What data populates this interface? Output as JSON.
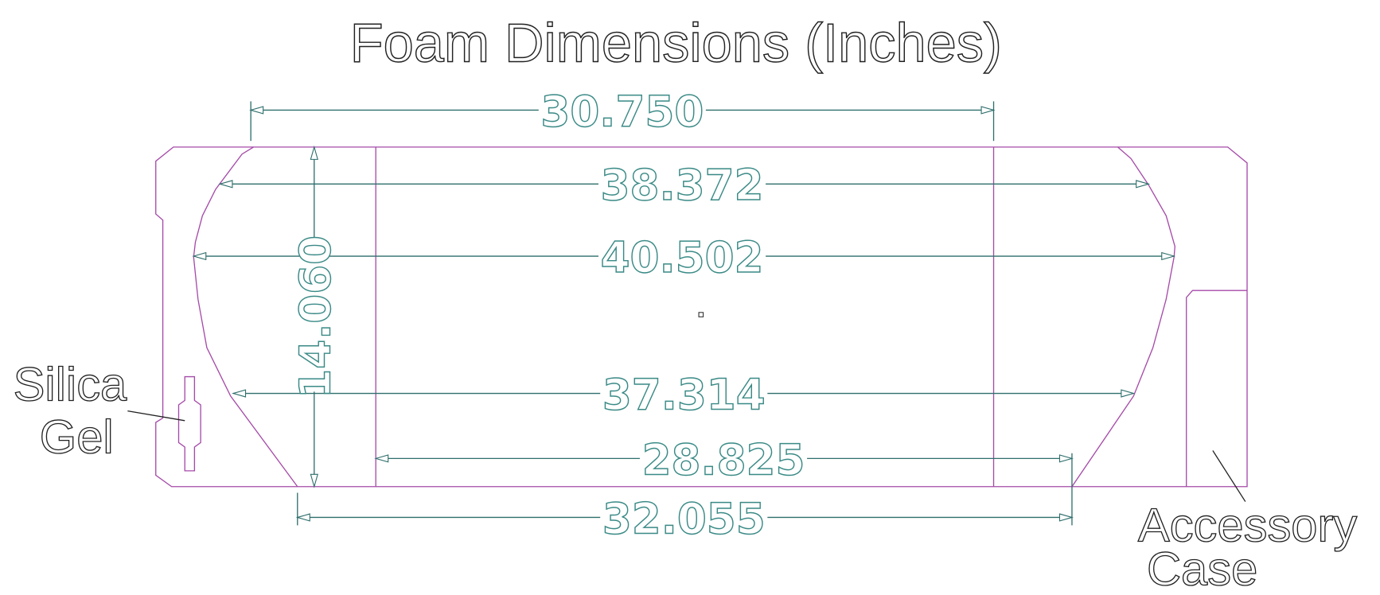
{
  "title": "Foam Dimensions (Inches)",
  "colors": {
    "outline": "#a54aa8",
    "dimension": "#2e6f6c",
    "text": "#222222"
  },
  "dimensions": {
    "top_width": "30.750",
    "upper_width": "38.372",
    "max_width": "40.502",
    "lower_width": "37.314",
    "bottom_inner_width": "28.825",
    "bottom_width": "32.055",
    "height": "14.060"
  },
  "labels": {
    "silica_line1": "Silica",
    "silica_line2": "Gel",
    "accessory_line1": "Accessory",
    "accessory_line2": "Case"
  }
}
